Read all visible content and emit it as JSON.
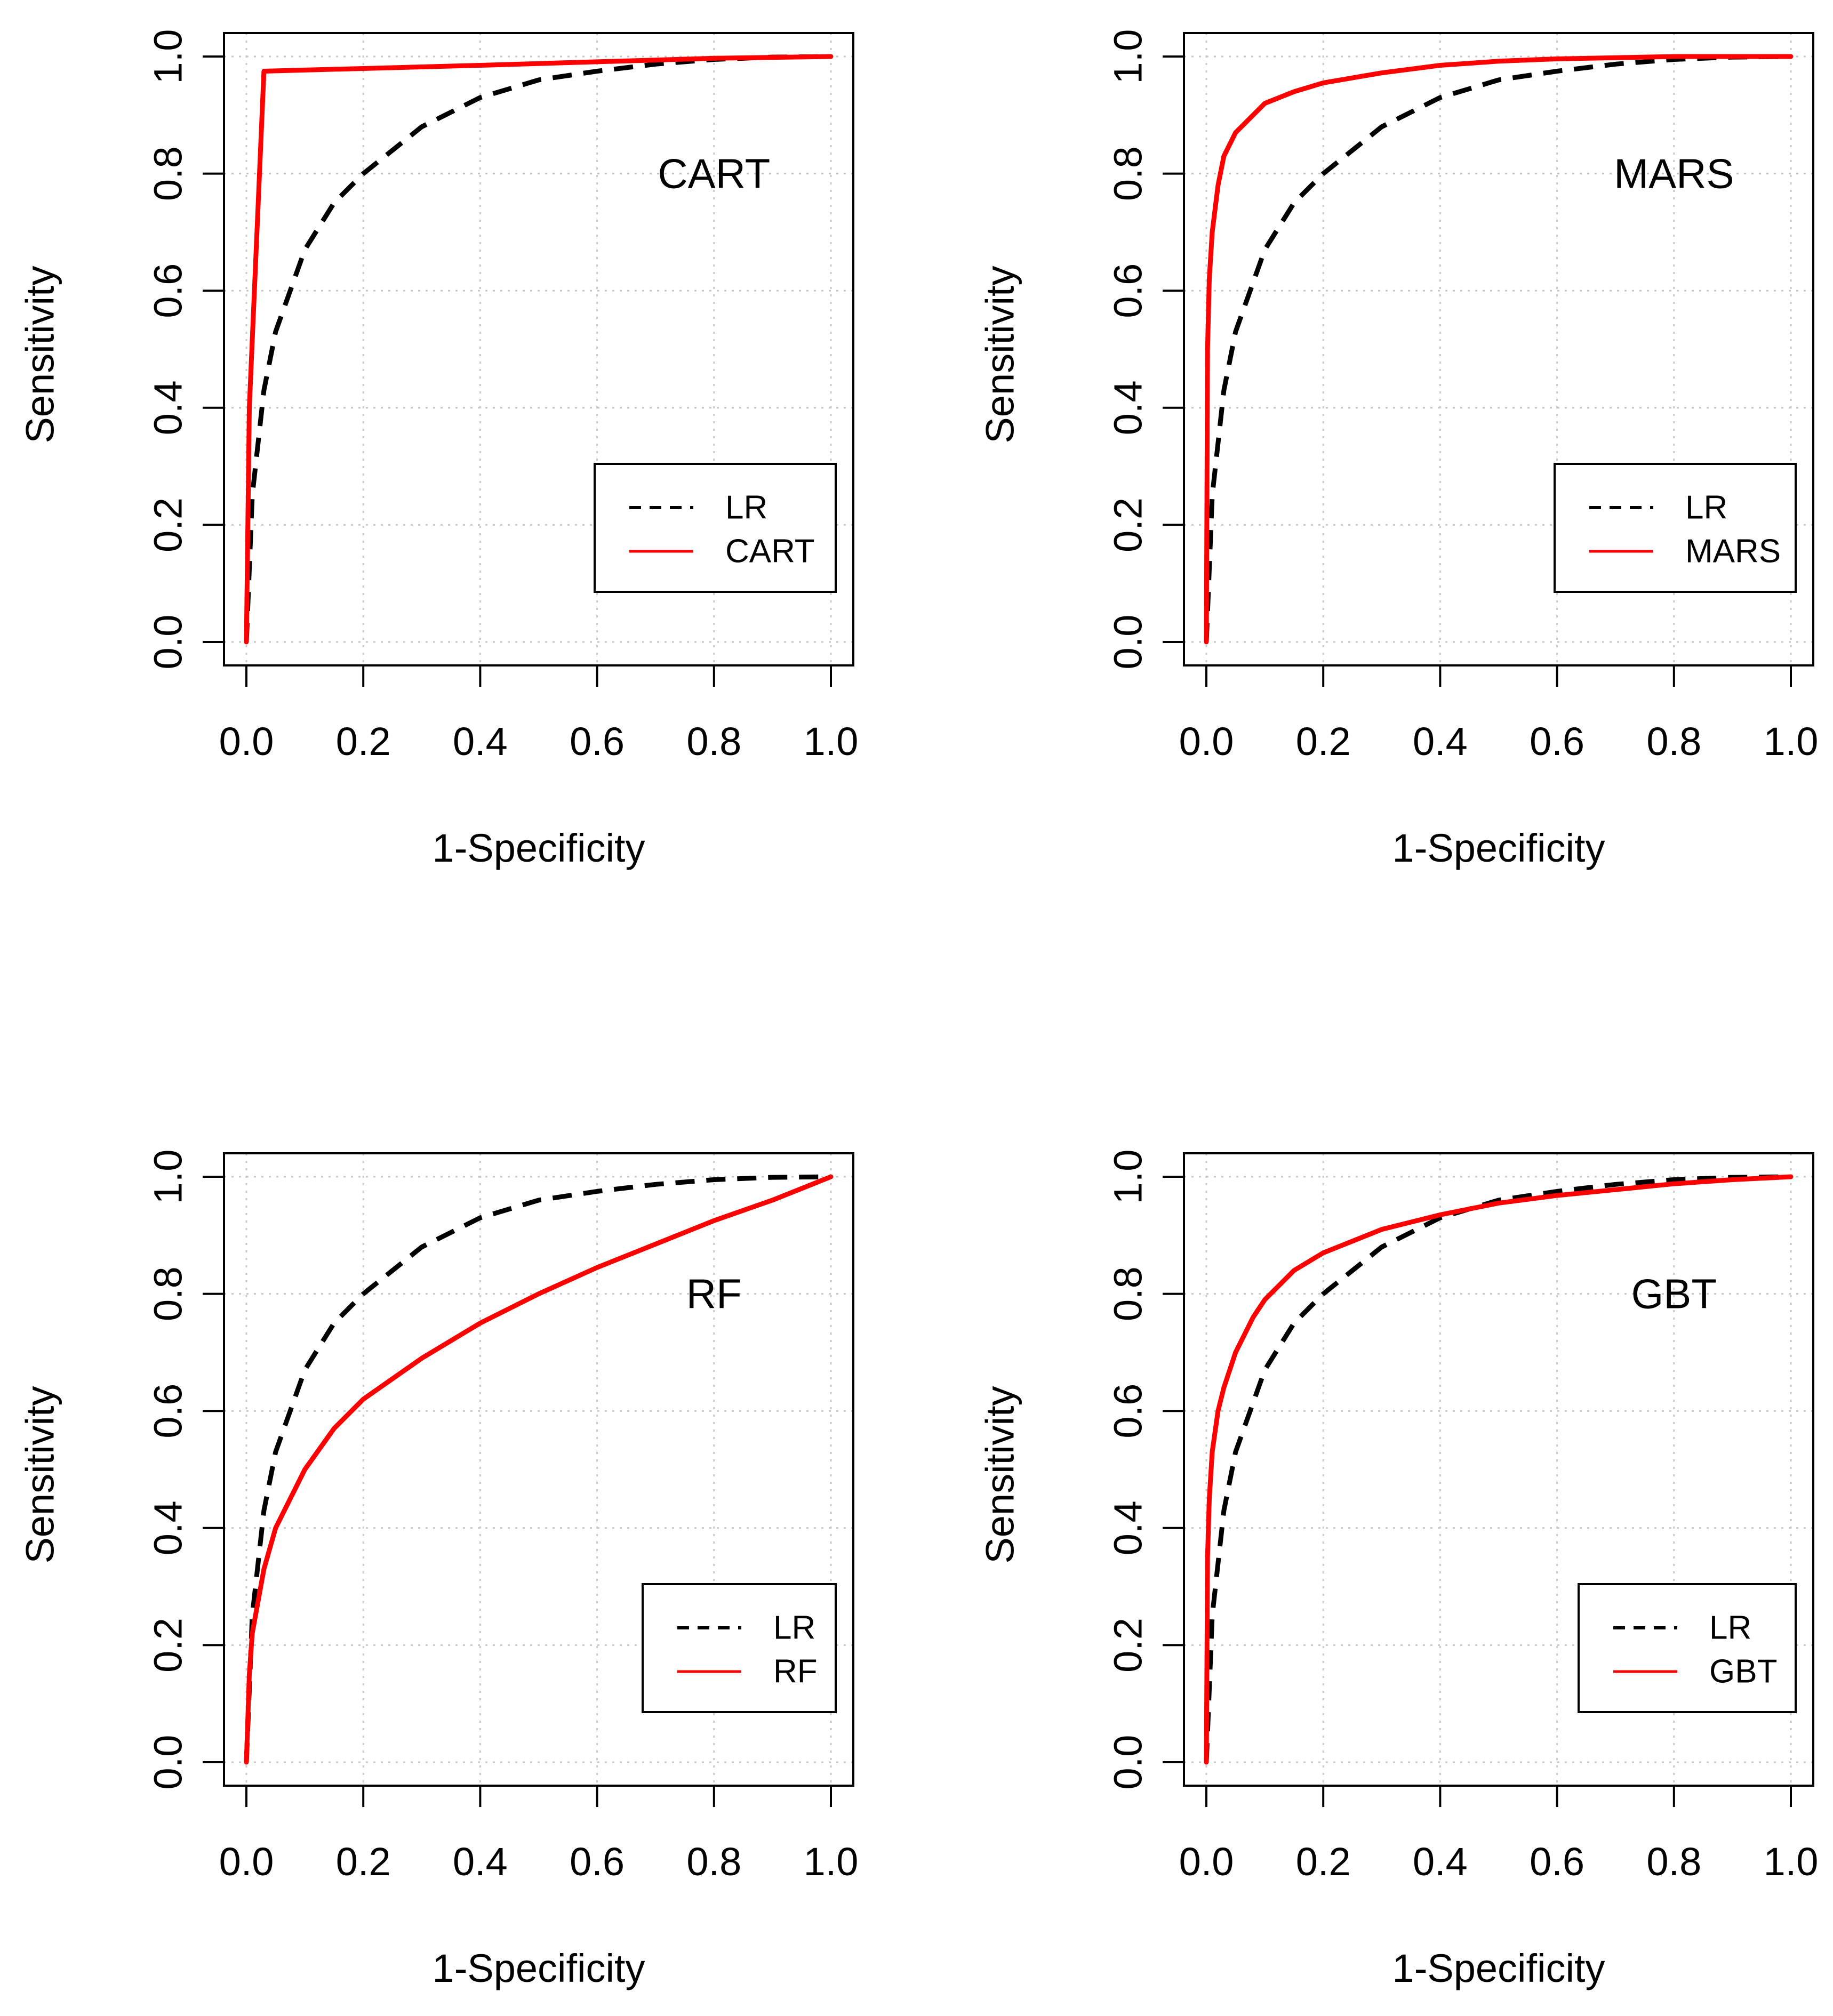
{
  "chart_data": [
    {
      "type": "line",
      "panel_label": "CART",
      "xlabel": "1-Specificity",
      "ylabel": "Sensitivity",
      "xlim": [
        0,
        1
      ],
      "ylim": [
        0,
        1
      ],
      "xticks": [
        "0.0",
        "0.2",
        "0.4",
        "0.6",
        "0.8",
        "1.0"
      ],
      "yticks": [
        "0.0",
        "0.2",
        "0.4",
        "0.6",
        "0.8",
        "1.0"
      ],
      "grid": true,
      "legend_position": "bottom-right",
      "series": [
        {
          "name": "LR",
          "style": "dashed",
          "color": "#000000",
          "x": [
            0,
            0.01,
            0.03,
            0.05,
            0.1,
            0.15,
            0.2,
            0.3,
            0.4,
            0.5,
            0.6,
            0.7,
            0.8,
            0.9,
            1.0
          ],
          "y": [
            0,
            0.25,
            0.43,
            0.53,
            0.67,
            0.75,
            0.8,
            0.88,
            0.93,
            0.96,
            0.975,
            0.987,
            0.995,
            0.999,
            1.0
          ]
        },
        {
          "name": "CART",
          "style": "solid",
          "color": "#ff0000",
          "x": [
            0,
            0.005,
            0.03,
            0.4,
            0.8,
            1.0
          ],
          "y": [
            0,
            0.4,
            0.975,
            0.985,
            0.997,
            1.0
          ]
        }
      ]
    },
    {
      "type": "line",
      "panel_label": "MARS",
      "xlabel": "1-Specificity",
      "ylabel": "Sensitivity",
      "xlim": [
        0,
        1
      ],
      "ylim": [
        0,
        1
      ],
      "xticks": [
        "0.0",
        "0.2",
        "0.4",
        "0.6",
        "0.8",
        "1.0"
      ],
      "yticks": [
        "0.0",
        "0.2",
        "0.4",
        "0.6",
        "0.8",
        "1.0"
      ],
      "grid": true,
      "legend_position": "bottom-right",
      "series": [
        {
          "name": "LR",
          "style": "dashed",
          "color": "#000000",
          "x": [
            0,
            0.01,
            0.03,
            0.05,
            0.1,
            0.15,
            0.2,
            0.3,
            0.4,
            0.5,
            0.6,
            0.7,
            0.8,
            0.9,
            1.0
          ],
          "y": [
            0,
            0.25,
            0.43,
            0.53,
            0.67,
            0.75,
            0.8,
            0.88,
            0.93,
            0.96,
            0.975,
            0.987,
            0.995,
            0.999,
            1.0
          ]
        },
        {
          "name": "MARS",
          "style": "solid",
          "color": "#ff0000",
          "x": [
            0,
            0.002,
            0.005,
            0.01,
            0.02,
            0.03,
            0.05,
            0.08,
            0.1,
            0.15,
            0.2,
            0.3,
            0.4,
            0.5,
            0.6,
            0.7,
            0.8,
            1.0
          ],
          "y": [
            0,
            0.5,
            0.62,
            0.7,
            0.78,
            0.83,
            0.87,
            0.9,
            0.92,
            0.94,
            0.955,
            0.972,
            0.985,
            0.992,
            0.996,
            0.998,
            1.0,
            1.0
          ]
        }
      ]
    },
    {
      "type": "line",
      "panel_label": "RF",
      "xlabel": "1-Specificity",
      "ylabel": "Sensitivity",
      "xlim": [
        0,
        1
      ],
      "ylim": [
        0,
        1
      ],
      "xticks": [
        "0.0",
        "0.2",
        "0.4",
        "0.6",
        "0.8",
        "1.0"
      ],
      "yticks": [
        "0.0",
        "0.2",
        "0.4",
        "0.6",
        "0.8",
        "1.0"
      ],
      "grid": true,
      "legend_position": "bottom-right",
      "series": [
        {
          "name": "LR",
          "style": "dashed",
          "color": "#000000",
          "x": [
            0,
            0.01,
            0.03,
            0.05,
            0.1,
            0.15,
            0.2,
            0.3,
            0.4,
            0.5,
            0.6,
            0.7,
            0.8,
            0.9,
            1.0
          ],
          "y": [
            0,
            0.25,
            0.43,
            0.53,
            0.67,
            0.75,
            0.8,
            0.88,
            0.93,
            0.96,
            0.975,
            0.987,
            0.995,
            0.999,
            1.0
          ]
        },
        {
          "name": "RF",
          "style": "solid",
          "color": "#ff0000",
          "x": [
            0,
            0.005,
            0.01,
            0.03,
            0.05,
            0.1,
            0.15,
            0.2,
            0.3,
            0.4,
            0.5,
            0.6,
            0.7,
            0.8,
            0.9,
            1.0
          ],
          "y": [
            0,
            0.15,
            0.22,
            0.33,
            0.4,
            0.5,
            0.57,
            0.62,
            0.69,
            0.75,
            0.8,
            0.845,
            0.885,
            0.925,
            0.96,
            1.0
          ]
        }
      ]
    },
    {
      "type": "line",
      "panel_label": "GBT",
      "xlabel": "1-Specificity",
      "ylabel": "Sensitivity",
      "xlim": [
        0,
        1
      ],
      "ylim": [
        0,
        1
      ],
      "xticks": [
        "0.0",
        "0.2",
        "0.4",
        "0.6",
        "0.8",
        "1.0"
      ],
      "yticks": [
        "0.0",
        "0.2",
        "0.4",
        "0.6",
        "0.8",
        "1.0"
      ],
      "grid": true,
      "legend_position": "bottom-right",
      "series": [
        {
          "name": "LR",
          "style": "dashed",
          "color": "#000000",
          "x": [
            0,
            0.01,
            0.03,
            0.05,
            0.1,
            0.15,
            0.2,
            0.3,
            0.4,
            0.5,
            0.6,
            0.7,
            0.8,
            0.9,
            1.0
          ],
          "y": [
            0,
            0.25,
            0.43,
            0.53,
            0.67,
            0.75,
            0.8,
            0.88,
            0.93,
            0.96,
            0.975,
            0.987,
            0.995,
            0.999,
            1.0
          ]
        },
        {
          "name": "GBT",
          "style": "solid",
          "color": "#ff0000",
          "x": [
            0,
            0.002,
            0.005,
            0.01,
            0.02,
            0.03,
            0.05,
            0.08,
            0.1,
            0.15,
            0.2,
            0.3,
            0.4,
            0.5,
            0.6,
            0.7,
            0.8,
            0.9,
            1.0
          ],
          "y": [
            0,
            0.35,
            0.45,
            0.53,
            0.6,
            0.64,
            0.7,
            0.76,
            0.79,
            0.84,
            0.87,
            0.91,
            0.935,
            0.955,
            0.968,
            0.978,
            0.988,
            0.995,
            1.0
          ]
        }
      ]
    }
  ]
}
